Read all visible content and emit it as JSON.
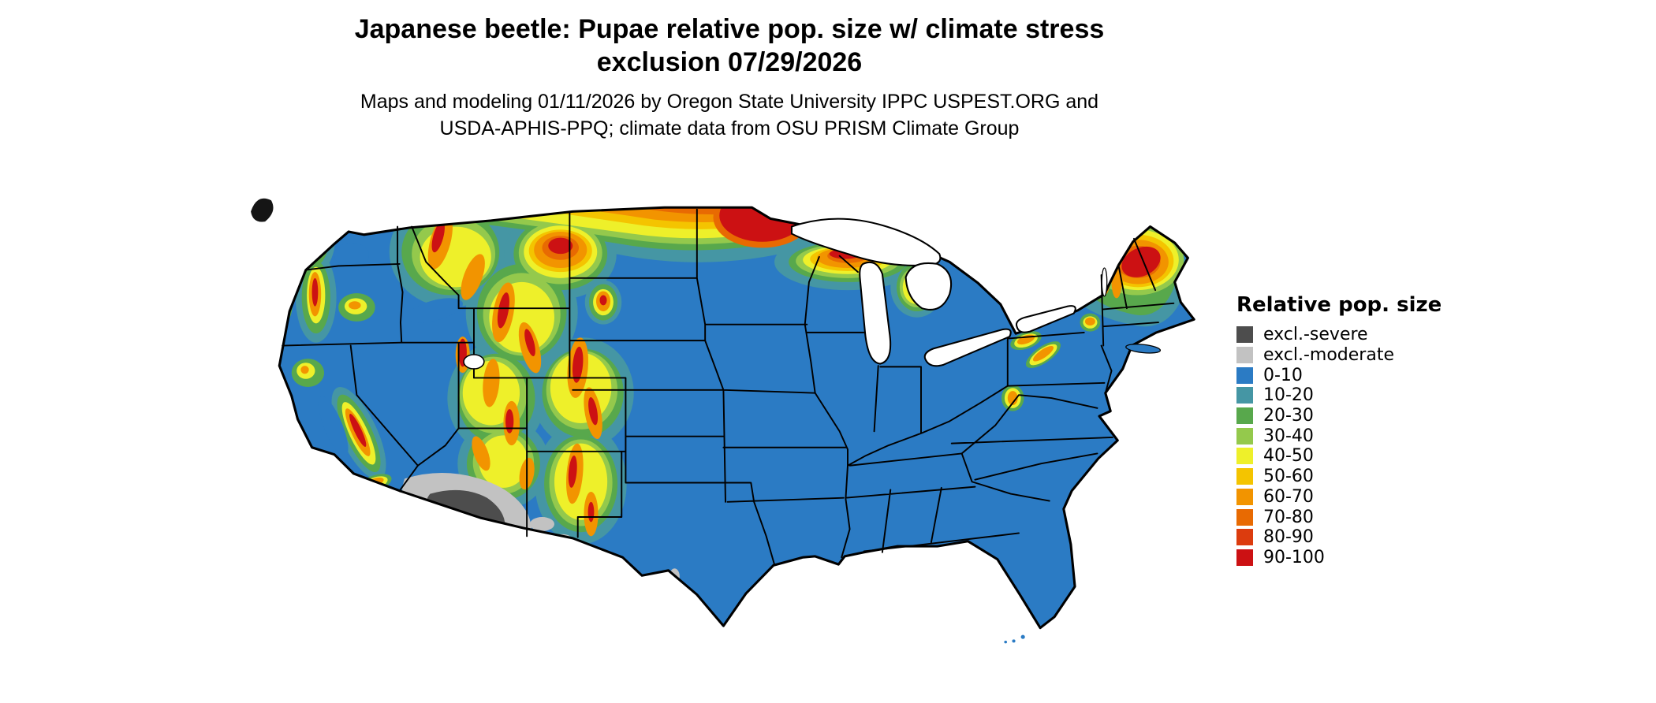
{
  "title": {
    "line1": "Japanese beetle: Pupae relative pop. size w/ climate stress",
    "line2": "exclusion 07/29/2026"
  },
  "subtitle": {
    "line1": "Maps and modeling 01/11/2026 by Oregon State University IPPC USPEST.ORG and",
    "line2": "USDA-APHIS-PPQ; climate data from OSU PRISM Climate Group"
  },
  "legend": {
    "title": "Relative pop. size",
    "items": [
      {
        "label": "excl.-severe",
        "color": "#4d4d4d"
      },
      {
        "label": "excl.-moderate",
        "color": "#c2c2c2"
      },
      {
        "label": "0-10",
        "color": "#2b7bc4"
      },
      {
        "label": "10-20",
        "color": "#4596a4"
      },
      {
        "label": "20-30",
        "color": "#58a84c"
      },
      {
        "label": "30-40",
        "color": "#94c94c"
      },
      {
        "label": "40-50",
        "color": "#eef02a"
      },
      {
        "label": "50-60",
        "color": "#f4c400"
      },
      {
        "label": "60-70",
        "color": "#f29400"
      },
      {
        "label": "70-80",
        "color": "#e86a02"
      },
      {
        "label": "80-90",
        "color": "#dc3c0e"
      },
      {
        "label": "90-100",
        "color": "#cc1113"
      }
    ]
  },
  "map": {
    "region": "Conterminous United States",
    "land_color": "#2b7bc4",
    "water_color": "#ffffff",
    "border_color": "#000000"
  }
}
